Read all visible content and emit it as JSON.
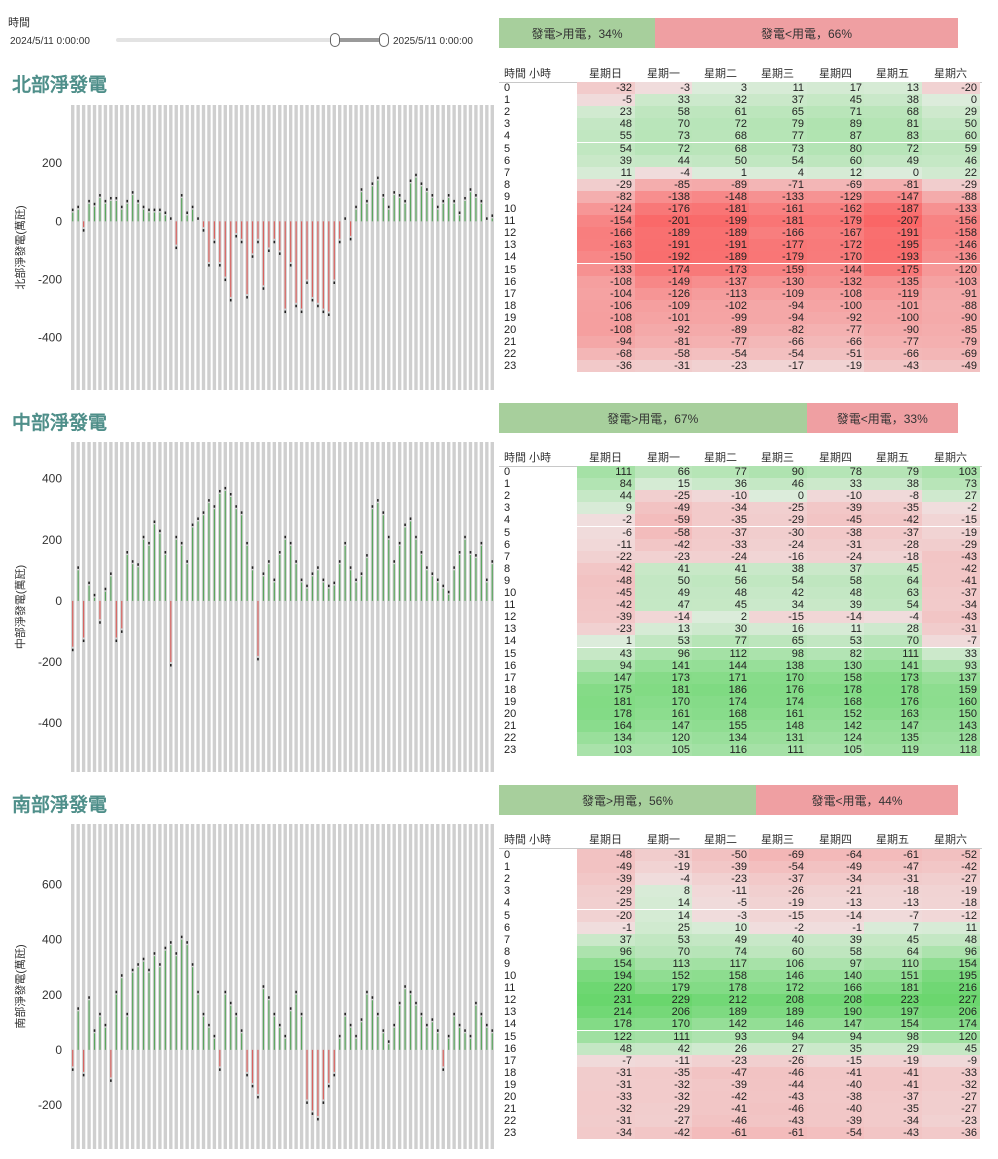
{
  "filter": {
    "label": "時間",
    "start": "2024/5/11 0:00:00",
    "end": "2025/5/11 0:00:00"
  },
  "table_header": {
    "hour_label": "時間 小時",
    "days": [
      "星期日",
      "星期一",
      "星期二",
      "星期三",
      "星期四",
      "星期五",
      "星期六"
    ]
  },
  "colors": {
    "positive": "#5aa65e",
    "negative": "#d9625f",
    "bar_bg": "#cfcfcf",
    "gen_bar": "#a7cf9c",
    "use_bar": "#ef9fa2"
  },
  "regions": [
    {
      "key": "north",
      "title": "北部淨發電",
      "ylabel": "北部淨發電(萬瓩)",
      "gen_label": "發電>用電，34%",
      "use_label": "發電<用電，66%",
      "gen_pct": 34,
      "use_pct": 66,
      "table": [
        [
          -32,
          -3,
          3,
          11,
          17,
          13,
          -20
        ],
        [
          -5,
          33,
          32,
          37,
          45,
          38,
          0
        ],
        [
          23,
          58,
          61,
          65,
          71,
          68,
          29
        ],
        [
          48,
          70,
          72,
          79,
          89,
          81,
          50
        ],
        [
          55,
          73,
          68,
          77,
          87,
          83,
          60
        ],
        [
          54,
          72,
          68,
          73,
          80,
          72,
          59
        ],
        [
          39,
          44,
          50,
          54,
          60,
          49,
          46
        ],
        [
          11,
          -4,
          1,
          4,
          12,
          0,
          22
        ],
        [
          -29,
          -85,
          -89,
          -71,
          -69,
          -81,
          -29
        ],
        [
          -82,
          -138,
          -148,
          -133,
          -129,
          -147,
          -88
        ],
        [
          -124,
          -176,
          -181,
          -161,
          -162,
          -187,
          -133
        ],
        [
          -154,
          -201,
          -199,
          -181,
          -179,
          -207,
          -156
        ],
        [
          -166,
          -189,
          -189,
          -166,
          -167,
          -191,
          -158
        ],
        [
          -163,
          -191,
          -191,
          -177,
          -172,
          -195,
          -146
        ],
        [
          -150,
          -192,
          -189,
          -179,
          -170,
          -193,
          -136
        ],
        [
          -133,
          -174,
          -173,
          -159,
          -144,
          -175,
          -120
        ],
        [
          -108,
          -149,
          -137,
          -130,
          -132,
          -135,
          -103
        ],
        [
          -104,
          -126,
          -113,
          -109,
          -108,
          -119,
          -91
        ],
        [
          -106,
          -109,
          -102,
          -94,
          -100,
          -101,
          -88
        ],
        [
          -108,
          -101,
          -99,
          -94,
          -92,
          -100,
          -90
        ],
        [
          -108,
          -92,
          -89,
          -82,
          -77,
          -90,
          -85
        ],
        [
          -94,
          -81,
          -77,
          -66,
          -66,
          -77,
          -79
        ],
        [
          -68,
          -58,
          -54,
          -54,
          -51,
          -66,
          -69
        ],
        [
          -36,
          -31,
          -23,
          -17,
          -19,
          -43,
          -49
        ]
      ]
    },
    {
      "key": "central",
      "title": "中部淨發電",
      "ylabel": "中部淨發電(萬瓩)",
      "gen_label": "發電>用電，67%",
      "use_label": "發電<用電，33%",
      "gen_pct": 67,
      "use_pct": 33,
      "table": [
        [
          111,
          66,
          77,
          90,
          78,
          79,
          103
        ],
        [
          84,
          15,
          36,
          46,
          33,
          38,
          73
        ],
        [
          44,
          -25,
          -10,
          0,
          -10,
          -8,
          27
        ],
        [
          9,
          -49,
          -34,
          -25,
          -39,
          -35,
          -2
        ],
        [
          -2,
          -59,
          -35,
          -29,
          -45,
          -42,
          -15
        ],
        [
          -6,
          -58,
          -37,
          -30,
          -38,
          -37,
          -19
        ],
        [
          -11,
          -42,
          -33,
          -24,
          -31,
          -28,
          -29
        ],
        [
          -22,
          -23,
          -24,
          -16,
          -24,
          -18,
          -43
        ],
        [
          -42,
          41,
          41,
          38,
          37,
          45,
          -42
        ],
        [
          -48,
          50,
          56,
          54,
          58,
          64,
          -41
        ],
        [
          -45,
          49,
          48,
          42,
          48,
          63,
          -37
        ],
        [
          -42,
          47,
          45,
          34,
          39,
          54,
          -34
        ],
        [
          -39,
          -14,
          2,
          -15,
          -14,
          -4,
          -43
        ],
        [
          -23,
          13,
          30,
          16,
          11,
          28,
          -31
        ],
        [
          1,
          53,
          77,
          65,
          53,
          70,
          -7
        ],
        [
          43,
          96,
          112,
          98,
          82,
          111,
          33
        ],
        [
          94,
          141,
          144,
          138,
          130,
          141,
          93
        ],
        [
          147,
          173,
          171,
          170,
          158,
          173,
          137
        ],
        [
          175,
          181,
          186,
          176,
          178,
          178,
          159
        ],
        [
          181,
          170,
          174,
          174,
          168,
          176,
          160
        ],
        [
          178,
          161,
          168,
          161,
          152,
          163,
          150
        ],
        [
          164,
          147,
          155,
          148,
          142,
          147,
          143
        ],
        [
          134,
          120,
          134,
          131,
          124,
          135,
          128
        ],
        [
          103,
          105,
          116,
          111,
          105,
          119,
          118
        ]
      ]
    },
    {
      "key": "south",
      "title": "南部淨發電",
      "ylabel": "南部淨發電(萬瓩)",
      "gen_label": "發電>用電，56%",
      "use_label": "發電<用電，44%",
      "gen_pct": 56,
      "use_pct": 44,
      "table": [
        [
          -48,
          -31,
          -50,
          -69,
          -64,
          -61,
          -52
        ],
        [
          -49,
          -19,
          -39,
          -54,
          -49,
          -47,
          -42
        ],
        [
          -39,
          -4,
          -23,
          -37,
          -34,
          -31,
          -27
        ],
        [
          -29,
          8,
          -11,
          -26,
          -21,
          -18,
          -19
        ],
        [
          -25,
          14,
          -5,
          -19,
          -13,
          -13,
          -18
        ],
        [
          -20,
          14,
          -3,
          -15,
          -14,
          -7,
          -12
        ],
        [
          -1,
          25,
          10,
          -2,
          -1,
          7,
          11
        ],
        [
          37,
          53,
          49,
          40,
          39,
          45,
          48
        ],
        [
          96,
          70,
          74,
          60,
          58,
          64,
          96
        ],
        [
          154,
          113,
          117,
          106,
          97,
          110,
          154
        ],
        [
          194,
          152,
          158,
          146,
          140,
          151,
          195
        ],
        [
          220,
          179,
          178,
          172,
          166,
          181,
          216
        ],
        [
          231,
          229,
          212,
          208,
          208,
          223,
          227
        ],
        [
          214,
          206,
          189,
          189,
          190,
          197,
          206
        ],
        [
          178,
          170,
          142,
          146,
          147,
          154,
          174
        ],
        [
          122,
          111,
          93,
          94,
          94,
          98,
          120
        ],
        [
          48,
          42,
          26,
          27,
          35,
          29,
          45
        ],
        [
          -7,
          -11,
          -23,
          -26,
          -15,
          -19,
          -9
        ],
        [
          -31,
          -35,
          -47,
          -46,
          -41,
          -41,
          -33
        ],
        [
          -31,
          -32,
          -39,
          -44,
          -40,
          -41,
          -32
        ],
        [
          -33,
          -32,
          -42,
          -43,
          -38,
          -37,
          -27
        ],
        [
          -32,
          -29,
          -41,
          -46,
          -40,
          -35,
          -27
        ],
        [
          -31,
          -27,
          -46,
          -43,
          -39,
          -34,
          -23
        ],
        [
          -34,
          -42,
          -61,
          -61,
          -54,
          -43,
          -36
        ]
      ]
    }
  ],
  "chart_data": [
    {
      "type": "bar",
      "title": "北部淨發電",
      "ylabel": "北部淨發電(萬瓩)",
      "yticks": [
        200,
        0,
        -200,
        -400
      ],
      "ylim": [
        -580,
        400
      ],
      "values": [
        30,
        40,
        -20,
        60,
        50,
        80,
        60,
        70,
        70,
        40,
        60,
        90,
        60,
        40,
        30,
        30,
        30,
        20,
        0,
        -80,
        80,
        20,
        40,
        0,
        -20,
        -140,
        -60,
        -140,
        -190,
        -260,
        -40,
        -60,
        -250,
        -110,
        -60,
        -220,
        -90,
        -60,
        -100,
        -300,
        -140,
        -280,
        -300,
        -200,
        -260,
        -280,
        -300,
        -310,
        -200,
        -60,
        0,
        -50,
        40,
        100,
        60,
        120,
        140,
        80,
        40,
        90,
        80,
        60,
        130,
        150,
        120,
        100,
        80,
        40,
        60,
        80,
        60,
        20,
        70,
        100,
        80,
        60,
        0,
        10
      ]
    },
    {
      "type": "bar",
      "title": "中部淨發電",
      "ylabel": "中部淨發電(萬瓩)",
      "yticks": [
        400,
        200,
        0,
        -200,
        -400
      ],
      "ylim": [
        -560,
        520
      ],
      "values": [
        -150,
        100,
        -120,
        50,
        10,
        -60,
        30,
        80,
        -120,
        -90,
        150,
        120,
        110,
        200,
        180,
        250,
        220,
        150,
        -200,
        200,
        180,
        120,
        240,
        260,
        280,
        320,
        300,
        350,
        360,
        340,
        300,
        280,
        180,
        100,
        -180,
        80,
        120,
        60,
        150,
        200,
        180,
        120,
        60,
        40,
        80,
        100,
        60,
        40,
        50,
        120,
        180,
        100,
        60,
        80,
        140,
        300,
        320,
        280,
        200,
        120,
        180,
        240,
        260,
        200,
        150,
        100,
        80,
        60,
        40,
        20,
        100,
        150,
        200,
        150,
        140,
        180,
        60,
        120
      ]
    },
    {
      "type": "bar",
      "title": "南部淨發電",
      "ylabel": "南部淨發電(萬瓩)",
      "yticks": [
        600,
        400,
        200,
        0,
        -200
      ],
      "ylim": [
        -360,
        820
      ],
      "values": [
        -60,
        140,
        -80,
        180,
        60,
        120,
        80,
        -100,
        200,
        260,
        120,
        280,
        300,
        320,
        280,
        340,
        300,
        360,
        380,
        340,
        400,
        380,
        300,
        200,
        120,
        80,
        40,
        -60,
        200,
        160,
        120,
        60,
        -80,
        -120,
        -160,
        220,
        180,
        120,
        80,
        40,
        140,
        200,
        120,
        -180,
        -220,
        -240,
        -180,
        -120,
        -80,
        40,
        120,
        80,
        40,
        100,
        200,
        180,
        120,
        60,
        20,
        80,
        160,
        220,
        200,
        160,
        120,
        80,
        100,
        60,
        -60,
        40,
        120,
        80,
        60,
        40,
        160,
        120,
        80,
        60
      ]
    }
  ]
}
